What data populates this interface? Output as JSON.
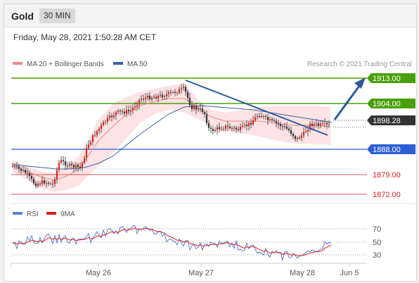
{
  "header": {
    "instrument": "Gold",
    "timeframe": "30 MIN"
  },
  "datetime": "Friday, May 28, 2021 1:50:28 AM CET",
  "legend": {
    "ma20": "MA 20 + Bollinger Bands",
    "ma50": "MA 50",
    "credit": "Research © 2021 Trading Central"
  },
  "levels": [
    {
      "value": 1913.0,
      "label": "1913.00",
      "kind": "resistance"
    },
    {
      "value": 1904.0,
      "label": "1904.00",
      "kind": "resistance"
    },
    {
      "value": 1898.28,
      "label": "1898.28",
      "kind": "current"
    },
    {
      "value": 1888.0,
      "label": "1888.00",
      "kind": "pivot"
    },
    {
      "value": 1879.0,
      "label": "1879.00",
      "kind": "support"
    },
    {
      "value": 1872.0,
      "label": "1872.00",
      "kind": "support"
    }
  ],
  "rsi_legend": {
    "rsi": "RSI",
    "ma": "9MA"
  },
  "rsi_ticks": [
    "70",
    "50",
    "30"
  ],
  "x_ticks": [
    "May 26",
    "May 27",
    "May 28",
    "Jun 5"
  ],
  "colors": {
    "bull": "#e8241c",
    "bear": "#333333",
    "bollinger_fill": "#fde0e0",
    "ma20": "#f08a8a",
    "ma50": "#3a5fa8",
    "resistance": "#4aa00a",
    "pivot": "#2c5fd6",
    "support": "#e05050",
    "current": "#333333",
    "trendline": "#2f5a9a",
    "rsi": "#5a7fd6",
    "rsi_ma": "#e02020"
  },
  "chart_data": {
    "type": "candlestick",
    "price_range": [
      1868,
      1916
    ],
    "resistance_levels": [
      1913.0,
      1904.0
    ],
    "pivot": 1888.0,
    "support_levels": [
      1879.0,
      1872.0
    ],
    "last_price": 1898.28,
    "rsi_levels": [
      70,
      50,
      30
    ]
  }
}
